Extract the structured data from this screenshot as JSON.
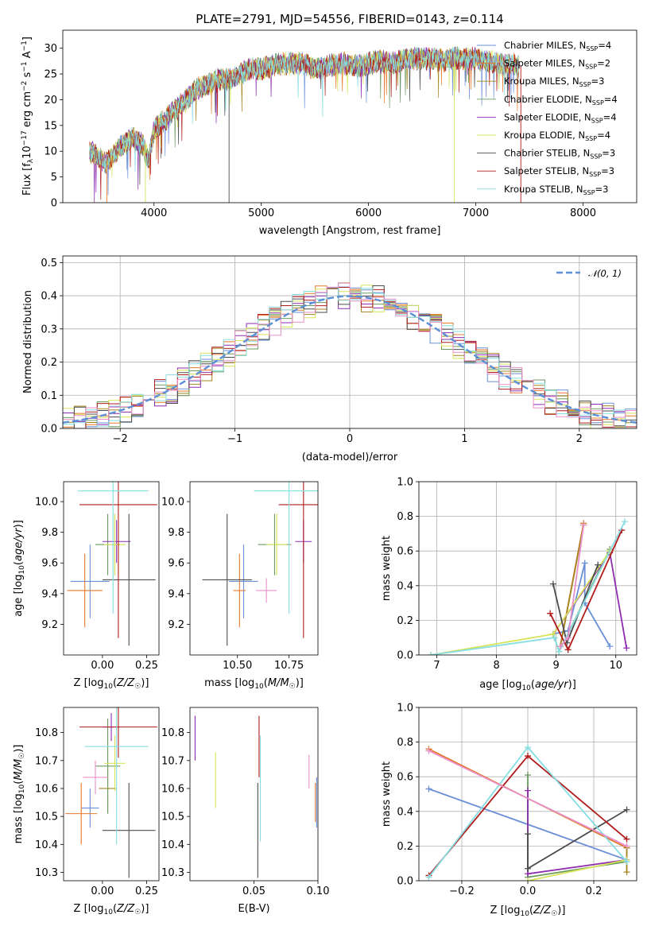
{
  "figure": {
    "title": "PLATE=2791, MJD=54556, FIBERID=0143, z=0.114"
  },
  "colors": {
    "Chabrier MILES": "#6a8fd8",
    "Salpeter MILES": "#e6782b",
    "Kroupa MILES": "#a38420",
    "Chabrier ELODIE": "#6a9a5e",
    "Salpeter ELODIE": "#8e2cb0",
    "Kroupa ELODIE": "#d8e45a",
    "Chabrier STELIB": "#4d4d4d",
    "Salpeter STELIB": "#b01c1c",
    "Kroupa STELIB": "#86dde2",
    "pink": "#e890c8",
    "green": "#6dbb3c",
    "gauss": "#5b8fd6"
  },
  "chart_data": [
    {
      "id": "spectrum",
      "type": "line",
      "xlabel": "wavelength [Angstrom, rest frame]",
      "ylabel": "Flux [f_λ10^-17 erg cm^-2 s^-1 A^-1]",
      "xlim": [
        3150,
        8500
      ],
      "ylim": [
        0,
        33.5
      ],
      "xticks": [
        4000,
        5000,
        6000,
        7000,
        8000
      ],
      "yticks": [
        0,
        5,
        10,
        15,
        20,
        25,
        30
      ],
      "grid": false,
      "legend_position": "right",
      "x": [
        3400,
        3500,
        3550,
        3600,
        3700,
        3800,
        3900,
        3950,
        4000,
        4100,
        4200,
        4300,
        4400,
        4500,
        4600,
        4700,
        4800,
        4900,
        5000,
        5100,
        5200,
        5300,
        5400,
        5500,
        5600,
        5700,
        5800,
        5900,
        6000,
        6100,
        6200,
        6300,
        6400,
        6500,
        6600,
        6700,
        6800,
        6900,
        7000,
        7100,
        7200,
        7300,
        7400
      ],
      "y": [
        10,
        8.5,
        7.5,
        9,
        11,
        12.5,
        11,
        8,
        14,
        16,
        18,
        20,
        22,
        23,
        24,
        24,
        25,
        26,
        26,
        26.5,
        27,
        27,
        27,
        26,
        26.5,
        27,
        27,
        26.5,
        27,
        27.5,
        27,
        27.5,
        28,
        28,
        28,
        27.5,
        28,
        28,
        28,
        27.5,
        27,
        27,
        26.5
      ],
      "series": [
        {
          "name": "Chabrier MILES",
          "nssp": "4"
        },
        {
          "name": "Salpeter MILES",
          "nssp": "2"
        },
        {
          "name": "Kroupa MILES",
          "nssp": "3"
        },
        {
          "name": "Chabrier ELODIE",
          "nssp": "4"
        },
        {
          "name": "Salpeter ELODIE",
          "nssp": "4"
        },
        {
          "name": "Kroupa ELODIE",
          "nssp": "4"
        },
        {
          "name": "Chabrier STELIB",
          "nssp": "3"
        },
        {
          "name": "Salpeter STELIB",
          "nssp": "3"
        },
        {
          "name": "Kroupa STELIB",
          "nssp": "3"
        }
      ]
    },
    {
      "id": "residuals",
      "type": "line",
      "xlabel": "(data-model)/error",
      "ylabel": "Normed distribution",
      "xlim": [
        -2.5,
        2.5
      ],
      "ylim": [
        0,
        0.52
      ],
      "xticks": [
        -2,
        -1,
        0,
        1,
        2
      ],
      "yticks": [
        0.0,
        0.1,
        0.2,
        0.3,
        0.4,
        0.5
      ],
      "grid": true,
      "legend_position": "top-right",
      "gauss_label": "N(0,1)",
      "bin_width": 0.1
    },
    {
      "id": "age_vs_Z",
      "type": "scatter",
      "xlabel": "Z [log10(Z/Z_sun)]",
      "ylabel": "age [log10(age/yr)]",
      "xlim": [
        -0.22,
        0.32
      ],
      "ylim": [
        9.0,
        10.13
      ],
      "xticks": [
        0.0,
        0.25
      ],
      "yticks": [
        9.2,
        9.4,
        9.6,
        9.8,
        10.0
      ],
      "points": [
        {
          "series": "Chabrier MILES",
          "x": -0.07,
          "y": 9.48,
          "xerr": 0.11,
          "yerr": 0.24
        },
        {
          "series": "Salpeter MILES",
          "x": -0.1,
          "y": 9.42,
          "xerr": 0.1,
          "yerr": 0.24
        },
        {
          "series": "Kroupa MILES",
          "x": 0.07,
          "y": 9.72,
          "xerr": 0.06,
          "yerr": 0.2
        },
        {
          "series": "Chabrier ELODIE",
          "x": 0.03,
          "y": 9.72,
          "xerr": 0.07,
          "yerr": 0.2
        },
        {
          "series": "Salpeter ELODIE",
          "x": 0.08,
          "y": 9.74,
          "xerr": 0.08,
          "yerr": 0.14
        },
        {
          "series": "Kroupa ELODIE",
          "x": 0.07,
          "y": 9.72,
          "xerr": 0.06,
          "yerr": 0.2
        },
        {
          "series": "Chabrier STELIB",
          "x": 0.15,
          "y": 9.49,
          "xerr": 0.15,
          "yerr": 0.43
        },
        {
          "series": "Salpeter STELIB",
          "x": 0.09,
          "y": 9.98,
          "xerr": 0.22,
          "yerr": 0.87
        },
        {
          "series": "Kroupa STELIB",
          "x": 0.06,
          "y": 10.07,
          "xerr": 0.2,
          "yerr": 0.8
        }
      ]
    },
    {
      "id": "age_vs_mass",
      "type": "scatter",
      "xlabel": "mass [log10(M/M_sun)]",
      "ylabel": "",
      "xlim": [
        10.27,
        10.89
      ],
      "ylim": [
        9.0,
        10.13
      ],
      "xticks": [
        10.5,
        10.75
      ],
      "yticks": [
        9.2,
        9.4,
        9.6,
        9.8,
        10.0
      ],
      "points": [
        {
          "series": "Chabrier MILES",
          "x": 10.53,
          "y": 9.48,
          "xerr": 0.07,
          "yerr": 0.24
        },
        {
          "series": "Salpeter MILES",
          "x": 10.51,
          "y": 9.42,
          "xerr": 0.03,
          "yerr": 0.24
        },
        {
          "series": "Chabrier ELODIE",
          "x": 10.68,
          "y": 9.72,
          "xerr": 0.08,
          "yerr": 0.2
        },
        {
          "series": "Salpeter ELODIE",
          "x": 10.82,
          "y": 9.74,
          "xerr": 0.04,
          "yerr": 0.14
        },
        {
          "series": "Kroupa ELODIE",
          "x": 10.69,
          "y": 9.72,
          "xerr": 0.05,
          "yerr": 0.2
        },
        {
          "series": "Chabrier STELIB",
          "x": 10.45,
          "y": 9.49,
          "xerr": 0.12,
          "yerr": 0.43
        },
        {
          "series": "Salpeter STELIB",
          "x": 10.82,
          "y": 9.98,
          "xerr": 0.12,
          "yerr": 0.87
        },
        {
          "series": "Kroupa STELIB",
          "x": 10.75,
          "y": 10.07,
          "xerr": 0.17,
          "yerr": 0.8
        },
        {
          "series": "pink",
          "x": 10.64,
          "y": 9.42,
          "xerr": 0.05,
          "yerr": 0.08
        }
      ]
    },
    {
      "id": "weight_vs_age",
      "type": "line",
      "xlabel": "age [log10(age/yr)]",
      "ylabel": "mass weight",
      "xlim": [
        6.7,
        10.35
      ],
      "ylim": [
        0.0,
        1.0
      ],
      "xticks": [
        7,
        8,
        9,
        10
      ],
      "yticks": [
        0.0,
        0.2,
        0.4,
        0.6,
        0.8,
        1.0
      ],
      "grid": true,
      "series": [
        {
          "name": "Chabrier MILES",
          "x": [
            8.95,
            9.2,
            9.48,
            9.48,
            9.9
          ],
          "y": [
            0.12,
            0.14,
            0.53,
            0.3,
            0.05
          ]
        },
        {
          "name": "Salpeter MILES",
          "x": [
            9.07,
            9.46
          ],
          "y": [
            0.05,
            0.76
          ]
        },
        {
          "name": "Kroupa MILES",
          "x": [
            9.07,
            9.46
          ],
          "y": [
            0.05,
            0.75
          ]
        },
        {
          "name": "Chabrier ELODIE",
          "x": [
            8.97,
            9.05,
            9.9
          ],
          "y": [
            0.1,
            0.02,
            0.61
          ]
        },
        {
          "name": "Salpeter ELODIE",
          "x": [
            8.95,
            9.9,
            10.18
          ],
          "y": [
            0.12,
            0.59,
            0.04
          ]
        },
        {
          "name": "Kroupa ELODIE",
          "x": [
            6.9,
            8.95,
            9.9
          ],
          "y": [
            0.0,
            0.12,
            0.6
          ]
        },
        {
          "name": "Chabrier STELIB",
          "x": [
            8.95,
            9.18,
            9.7
          ],
          "y": [
            0.41,
            0.07,
            0.52
          ]
        },
        {
          "name": "Salpeter STELIB",
          "x": [
            8.9,
            9.2,
            10.1
          ],
          "y": [
            0.24,
            0.03,
            0.72
          ]
        },
        {
          "name": "Kroupa STELIB",
          "x": [
            6.9,
            8.97,
            9.05,
            10.15
          ],
          "y": [
            0.0,
            0.1,
            0.02,
            0.77
          ]
        },
        {
          "name": "pink",
          "x": [
            9.07,
            9.2,
            9.46
          ],
          "y": [
            0.05,
            0.1,
            0.75
          ]
        }
      ]
    },
    {
      "id": "mass_vs_Z",
      "type": "scatter",
      "xlabel": "Z [log10(Z/Z_sun)]",
      "ylabel": "mass [log10(M/M_sun)]",
      "xlim": [
        -0.22,
        0.32
      ],
      "ylim": [
        10.27,
        10.89
      ],
      "xticks": [
        0.0,
        0.25
      ],
      "yticks": [
        10.3,
        10.4,
        10.5,
        10.6,
        10.7,
        10.8
      ],
      "points": [
        {
          "series": "Chabrier MILES",
          "x": -0.07,
          "y": 10.53,
          "xerr": 0.05,
          "yerr": 0.07
        },
        {
          "series": "Salpeter MILES",
          "x": -0.12,
          "y": 10.51,
          "xerr": 0.09,
          "yerr": 0.11
        },
        {
          "series": "Kroupa MILES",
          "x": 0.03,
          "y": 10.6,
          "xerr": 0.05,
          "yerr": 0.09
        },
        {
          "series": "Chabrier ELODIE",
          "x": 0.03,
          "y": 10.68,
          "xerr": 0.07,
          "yerr": 0.17
        },
        {
          "series": "Salpeter ELODIE",
          "x": 0.05,
          "y": 10.82,
          "xerr": 0.05,
          "yerr": 0.05
        },
        {
          "series": "Kroupa ELODIE",
          "x": 0.07,
          "y": 10.69,
          "xerr": 0.06,
          "yerr": 0.1
        },
        {
          "series": "Chabrier STELIB",
          "x": 0.15,
          "y": 10.45,
          "xerr": 0.15,
          "yerr": 0.17
        },
        {
          "series": "Salpeter STELIB",
          "x": 0.09,
          "y": 10.82,
          "xerr": 0.22,
          "yerr": 0.11
        },
        {
          "series": "Kroupa STELIB",
          "x": 0.08,
          "y": 10.75,
          "xerr": 0.18,
          "yerr": 0.35
        },
        {
          "series": "pink",
          "x": -0.04,
          "y": 10.64,
          "xerr": 0.07,
          "yerr": 0.06
        }
      ]
    },
    {
      "id": "mass_vs_ebv",
      "type": "scatter",
      "xlabel": "E(B-V)",
      "ylabel": "",
      "xlim": [
        0.0,
        0.1
      ],
      "ylim": [
        10.27,
        10.89
      ],
      "xticks": [
        0.05,
        0.1
      ],
      "yticks": [
        10.3,
        10.4,
        10.5,
        10.6,
        10.7,
        10.8
      ],
      "points": [
        {
          "series": "Salpeter ELODIE",
          "x": 0.004,
          "y": 10.78,
          "xerr": 0,
          "yerr": 0.08
        },
        {
          "series": "Kroupa ELODIE",
          "x": 0.02,
          "y": 10.63,
          "xerr": 0,
          "yerr": 0.1
        },
        {
          "series": "Chabrier STELIB",
          "x": 0.053,
          "y": 10.45,
          "xerr": 0,
          "yerr": 0.17
        },
        {
          "series": "Salpeter STELIB",
          "x": 0.054,
          "y": 10.75,
          "xerr": 0,
          "yerr": 0.11
        },
        {
          "series": "Kroupa STELIB",
          "x": 0.055,
          "y": 10.6,
          "xerr": 0,
          "yerr": 0.19
        },
        {
          "series": "pink",
          "x": 0.093,
          "y": 10.66,
          "xerr": 0,
          "yerr": 0.06
        },
        {
          "series": "Salpeter MILES",
          "x": 0.098,
          "y": 10.55,
          "xerr": 0,
          "yerr": 0.07
        },
        {
          "series": "Chabrier MILES",
          "x": 0.099,
          "y": 10.55,
          "xerr": 0,
          "yerr": 0.09
        }
      ]
    },
    {
      "id": "weight_vs_Z",
      "type": "line",
      "xlabel": "Z [log10(Z/Z_sun)]",
      "ylabel": "mass weight",
      "xlim": [
        -0.33,
        0.33
      ],
      "ylim": [
        0.0,
        1.0
      ],
      "xticks": [
        -0.2,
        0.0,
        0.2
      ],
      "yticks": [
        0.0,
        0.2,
        0.4,
        0.6,
        0.8,
        1.0
      ],
      "grid": true,
      "series": [
        {
          "name": "Chabrier MILES",
          "x": [
            -0.3,
            0.3
          ],
          "y": [
            0.53,
            0.12
          ]
        },
        {
          "name": "Salpeter MILES",
          "x": [
            -0.3,
            0.3
          ],
          "y": [
            0.76,
            0.19
          ]
        },
        {
          "name": "Kroupa MILES",
          "x": [
            0.3,
            0.3
          ],
          "y": [
            0.05,
            0.19
          ]
        },
        {
          "name": "Chabrier ELODIE",
          "x": [
            0.0,
            0.0,
            0.3
          ],
          "y": [
            0.61,
            0.02,
            0.11
          ]
        },
        {
          "name": "Salpeter ELODIE",
          "x": [
            0.0,
            0.0,
            0.3
          ],
          "y": [
            0.52,
            0.04,
            0.12
          ]
        },
        {
          "name": "Kroupa ELODIE",
          "x": [
            0.0,
            0.3
          ],
          "y": [
            0.0,
            0.12
          ]
        },
        {
          "name": "Chabrier STELIB",
          "x": [
            0.0,
            0.0,
            0.3
          ],
          "y": [
            0.27,
            0.07,
            0.41
          ]
        },
        {
          "name": "Salpeter STELIB",
          "x": [
            -0.3,
            0.0,
            0.3
          ],
          "y": [
            0.03,
            0.72,
            0.24
          ]
        },
        {
          "name": "Kroupa STELIB",
          "x": [
            -0.3,
            0.0,
            0.3
          ],
          "y": [
            0.02,
            0.77,
            0.11
          ]
        },
        {
          "name": "pink",
          "x": [
            -0.3,
            0.3
          ],
          "y": [
            0.75,
            0.2
          ]
        }
      ]
    }
  ]
}
